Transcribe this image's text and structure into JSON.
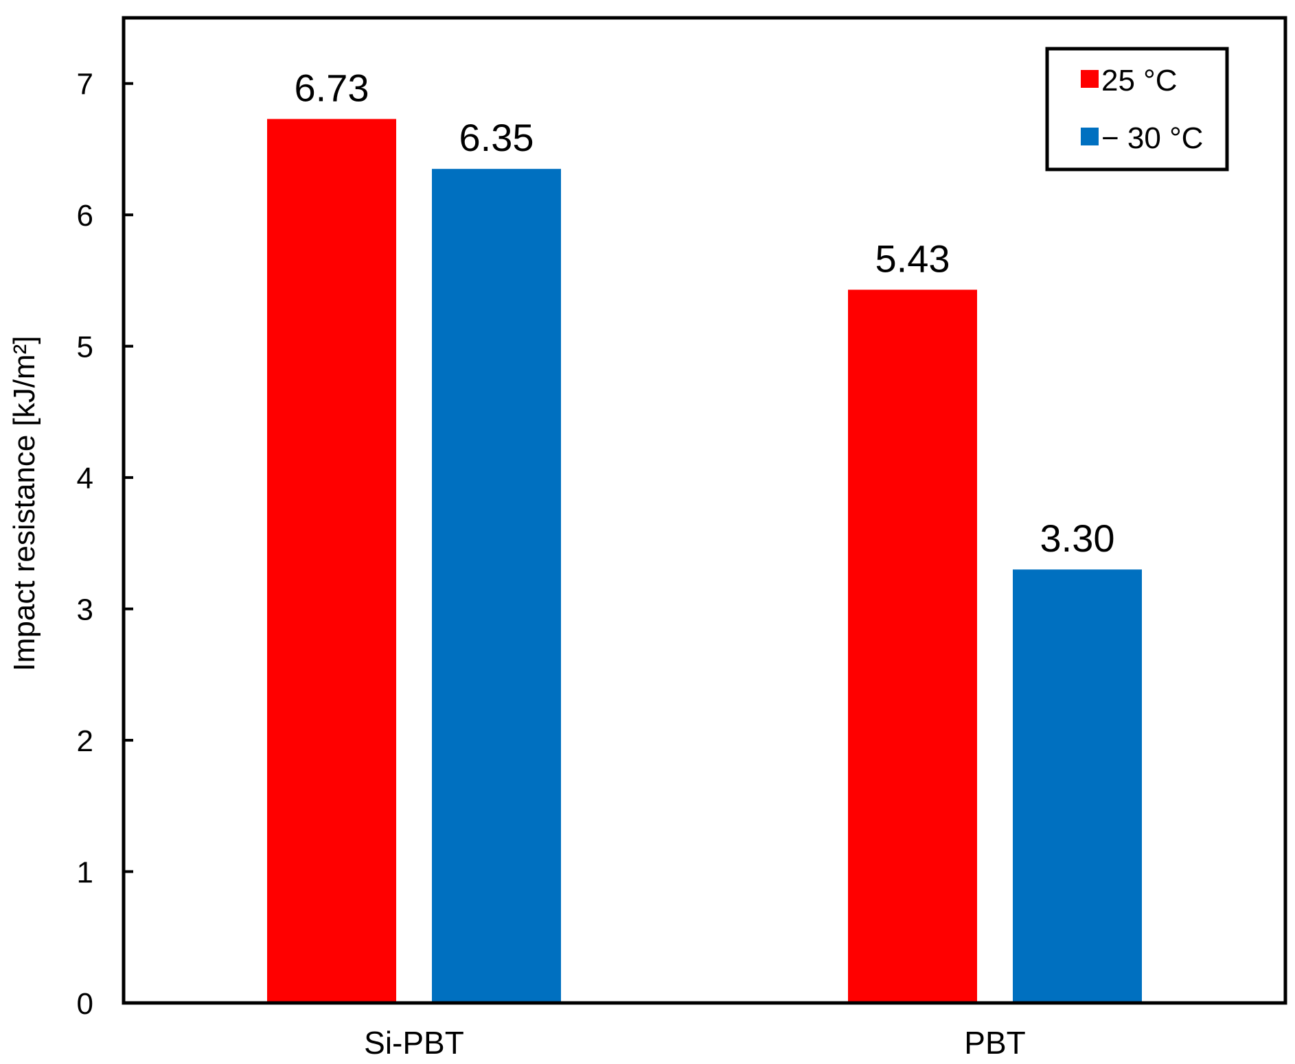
{
  "chart_data": {
    "type": "bar",
    "title": "",
    "xlabel": "",
    "ylabel": "Impact resistance [kJ/m²]",
    "categories": [
      "Si-PBT",
      "PBT"
    ],
    "series": [
      {
        "name": "25 °C",
        "color": "#ff0000",
        "values": [
          6.73,
          5.43
        ],
        "labels": [
          "6.73",
          "5.43"
        ]
      },
      {
        "name": "− 30 °C",
        "color": "#0070c0",
        "values": [
          6.35,
          3.3
        ],
        "labels": [
          "6.35",
          "3.30"
        ]
      }
    ],
    "ylim": [
      0,
      7.5
    ],
    "yticks": [
      0,
      1,
      2,
      3,
      4,
      5,
      6,
      7
    ],
    "grid": false,
    "legend_position": "top-right"
  }
}
